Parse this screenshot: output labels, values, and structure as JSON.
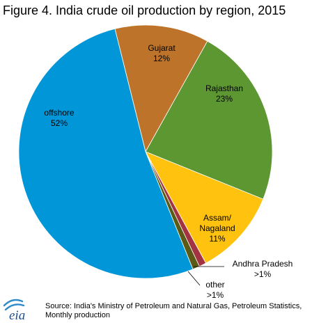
{
  "colors": {
    "offshore": "#0096d7",
    "gujarat": "#bd732a",
    "rajasthan": "#5d9732",
    "assam": "#ffc20e",
    "andhra": "#a33340",
    "other": "#5b5b17",
    "eia_logo_blue": "#2e8bc9"
  },
  "logo": {
    "text": "eia",
    "icon": "eia-logo"
  },
  "source": {
    "line1": "Source: India's Ministry of Petroleum and Natural Gas, Petroleum Statistics,",
    "line2": "Monthly production"
  },
  "chart_data": {
    "type": "pie",
    "title": "Figure 4. India crude oil production by region, 2015",
    "start_angle_deg": -14,
    "direction": "clockwise",
    "slices": [
      {
        "key": "gujarat",
        "name": "Gujarat",
        "label": "12%",
        "value": 12
      },
      {
        "key": "rajasthan",
        "name": "Rajasthan",
        "label": "23%",
        "value": 23
      },
      {
        "key": "assam",
        "name": "Assam/\nNagaland",
        "label": "11%",
        "value": 11
      },
      {
        "key": "andhra",
        "name": "Andhra Pradesh",
        "label": ">1%",
        "value": 0.9
      },
      {
        "key": "other",
        "name": "other",
        "label": ">1%",
        "value": 0.9
      },
      {
        "key": "offshore",
        "name": "offshore",
        "label": "52%",
        "value": 52.2
      }
    ],
    "legend": "none"
  }
}
